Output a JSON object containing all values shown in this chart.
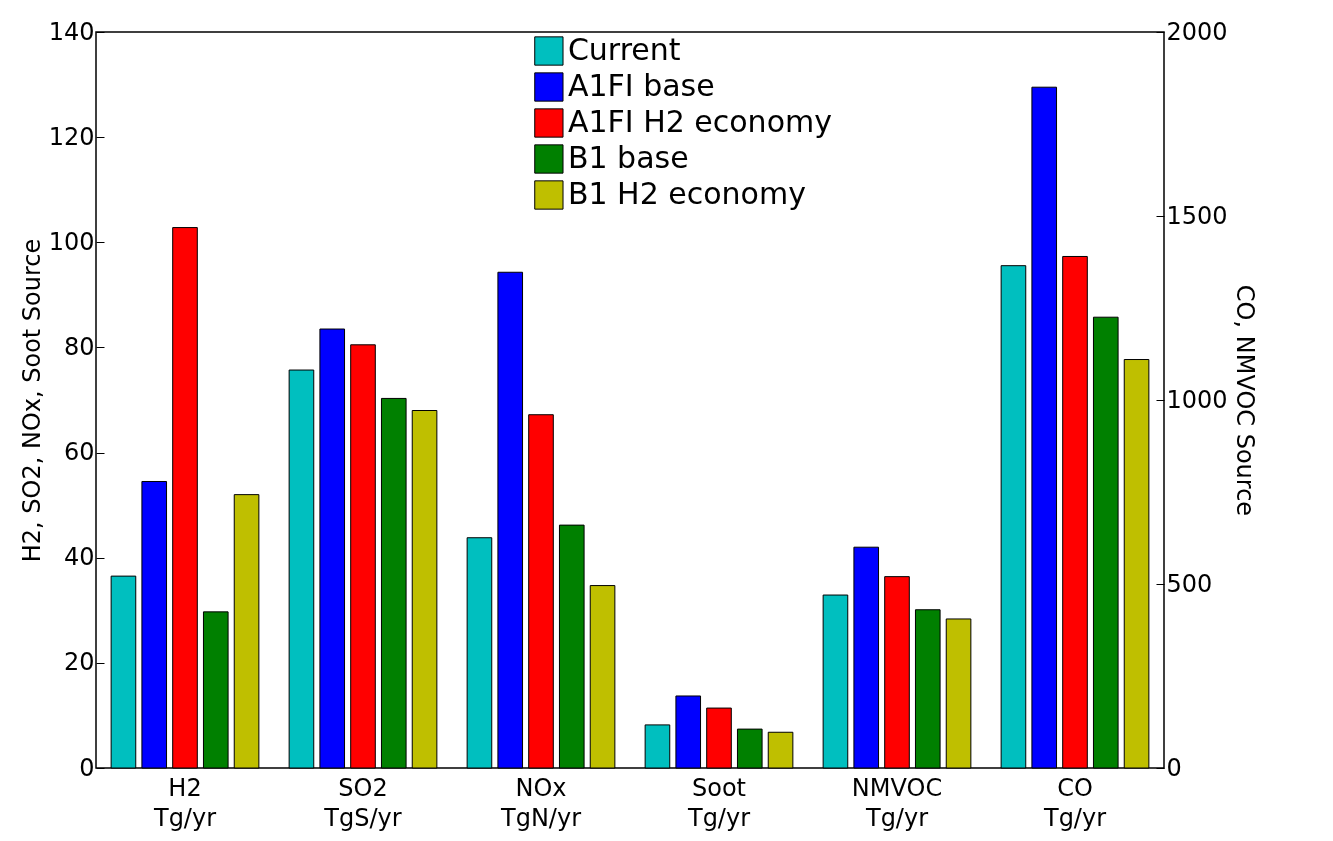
{
  "chart_data": {
    "type": "bar",
    "ylabel": "H2, SO2, NOx, Soot Source",
    "y2label": "CO, NMVOC Source",
    "categories": [
      "H2\nTg/yr",
      "SO2\nTgS/yr",
      "NOx\nTgN/yr",
      "Soot\nTg/yr",
      "NMVOC\nTg/yr",
      "CO\nTg/yr"
    ],
    "series": [
      {
        "name": "Current",
        "color": "#00bfbf",
        "values": [
          36.5,
          75.7,
          43.8,
          8.2,
          null,
          null
        ]
      },
      {
        "name": "A1FI base",
        "color": "#0000ff",
        "values": [
          54.5,
          83.5,
          94.3,
          13.7,
          null,
          null
        ]
      },
      {
        "name": "A1FI H2 economy",
        "color": "#ff0000",
        "values": [
          102.8,
          80.5,
          67.2,
          11.4,
          null,
          null
        ]
      },
      {
        "name": "B1 base",
        "color": "#008000",
        "values": [
          29.7,
          70.3,
          46.2,
          7.4,
          null,
          null
        ]
      },
      {
        "name": "B1 H2 economy",
        "color": "#bfbf00",
        "values": [
          52,
          68,
          34.7,
          6.8,
          null,
          null
        ]
      },
      {
        "color": "#00bfbf",
        "axis": "y2",
        "values": [
          null,
          null,
          null,
          null,
          470,
          1365
        ]
      },
      {
        "color": "#0000ff",
        "axis": "y2",
        "values": [
          null,
          null,
          null,
          null,
          600,
          1850
        ]
      },
      {
        "color": "#ff0000",
        "axis": "y2",
        "values": [
          null,
          null,
          null,
          null,
          520,
          1390
        ]
      },
      {
        "color": "#008000",
        "axis": "y2",
        "values": [
          null,
          null,
          null,
          null,
          430,
          1225
        ]
      },
      {
        "color": "#bfbf00",
        "axis": "y2",
        "values": [
          null,
          null,
          null,
          null,
          405,
          1110
        ]
      }
    ],
    "ylim": [
      0,
      140
    ],
    "yticks": [
      0,
      20,
      40,
      60,
      80,
      100,
      120,
      140
    ],
    "y2lim": [
      0,
      2000
    ],
    "y2ticks": [
      0,
      500,
      1000,
      1500,
      2000
    ],
    "legend": "top",
    "grid": false
  }
}
